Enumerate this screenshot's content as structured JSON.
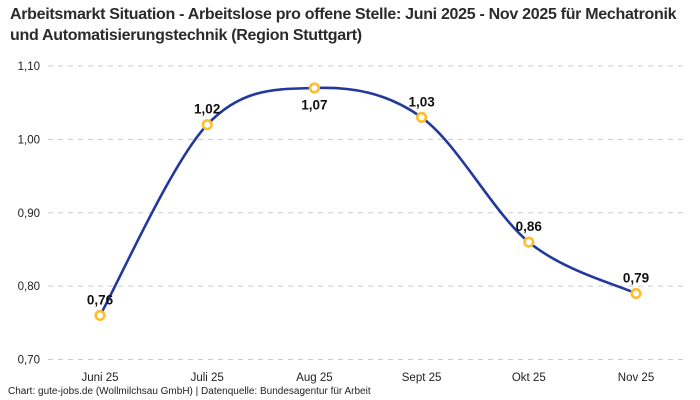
{
  "title": "Arbeitsmarkt Situation - Arbeitslose pro offene Stelle: Juni 2025 - Nov 2025 für Mechatronik und Automatisierungstechnik (Region Stuttgart)",
  "footer": "Chart: gute-jobs.de (Wollmilchsau GmbH) | Datenquelle: Bundesagentur für Arbeit",
  "chart_data": {
    "type": "line",
    "title": "Arbeitsmarkt Situation - Arbeitslose pro offene Stelle: Juni 2025 - Nov 2025 für Mechatronik und Automatisierungstechnik (Region Stuttgart)",
    "categories": [
      "Juni 25",
      "Juli 25",
      "Aug 25",
      "Sept 25",
      "Okt 25",
      "Nov 25"
    ],
    "values": [
      0.76,
      1.02,
      1.07,
      1.03,
      0.86,
      0.79
    ],
    "point_labels": [
      "0,76",
      "1,02",
      "1,07",
      "1,03",
      "0,86",
      "0,79"
    ],
    "label_positions": [
      "above",
      "above",
      "below",
      "above",
      "above",
      "above"
    ],
    "xlabel": "",
    "ylabel": "",
    "ylim": [
      0.7,
      1.1
    ],
    "yticks": [
      {
        "value": 0.7,
        "label": "0,70"
      },
      {
        "value": 0.8,
        "label": "0,80"
      },
      {
        "value": 0.9,
        "label": "0,90"
      },
      {
        "value": 1.0,
        "label": "1,00"
      },
      {
        "value": 1.1,
        "label": "1,10"
      }
    ],
    "grid": "horizontal-dashed",
    "legend_position": "none",
    "line_color": "#22389d",
    "marker_color": "#fcbe2d",
    "marker_fill": "#ffffff",
    "label_color": "#111111",
    "grid_color": "#cccccc"
  }
}
